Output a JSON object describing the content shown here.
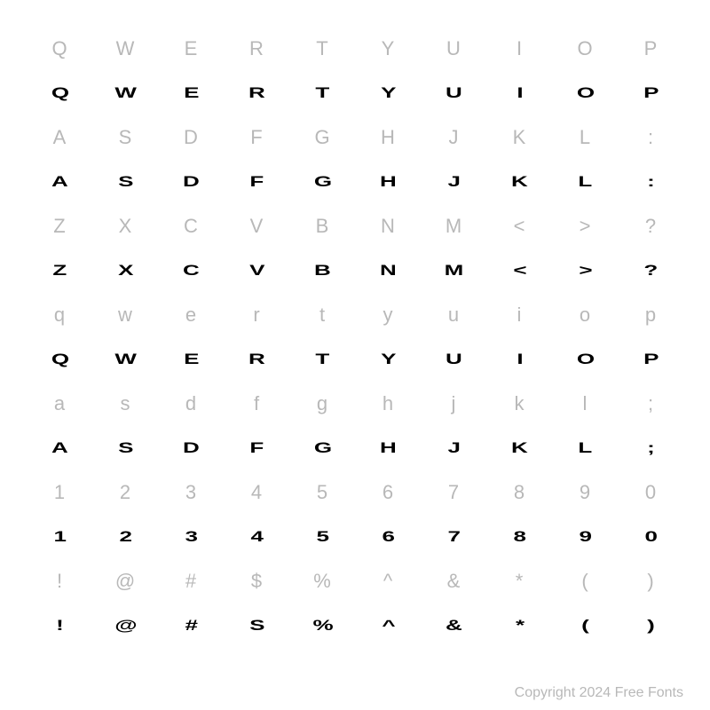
{
  "font_specimen": {
    "background_color": "#ffffff",
    "reference_color": "#b8b8b8",
    "glyph_color": "#000000",
    "reference_fontsize": 22,
    "glyph_fontsize": 20,
    "grid_columns": 10,
    "grid_rows": 12,
    "rows": [
      {
        "type": "ref",
        "cells": [
          "Q",
          "W",
          "E",
          "R",
          "T",
          "Y",
          "U",
          "I",
          "O",
          "P"
        ]
      },
      {
        "type": "glyph",
        "cells": [
          "Q",
          "W",
          "E",
          "R",
          "T",
          "Y",
          "U",
          "I",
          "O",
          "P"
        ]
      },
      {
        "type": "ref",
        "cells": [
          "A",
          "S",
          "D",
          "F",
          "G",
          "H",
          "J",
          "K",
          "L",
          ":"
        ]
      },
      {
        "type": "glyph",
        "cells": [
          "A",
          "S",
          "D",
          "F",
          "G",
          "H",
          "J",
          "K",
          "L",
          ":"
        ]
      },
      {
        "type": "ref",
        "cells": [
          "Z",
          "X",
          "C",
          "V",
          "B",
          "N",
          "M",
          "<",
          ">",
          "?"
        ]
      },
      {
        "type": "glyph",
        "cells": [
          "Z",
          "X",
          "C",
          "V",
          "B",
          "N",
          "M",
          "<",
          ">",
          "?"
        ]
      },
      {
        "type": "ref",
        "cells": [
          "q",
          "w",
          "e",
          "r",
          "t",
          "y",
          "u",
          "i",
          "o",
          "p"
        ]
      },
      {
        "type": "glyph",
        "cells": [
          "Q",
          "W",
          "E",
          "R",
          "T",
          "Y",
          "U",
          "I",
          "O",
          "P"
        ]
      },
      {
        "type": "ref",
        "cells": [
          "a",
          "s",
          "d",
          "f",
          "g",
          "h",
          "j",
          "k",
          "l",
          ";"
        ]
      },
      {
        "type": "glyph",
        "cells": [
          "A",
          "S",
          "D",
          "F",
          "G",
          "H",
          "J",
          "K",
          "L",
          ";"
        ]
      },
      {
        "type": "ref",
        "cells": [
          "1",
          "2",
          "3",
          "4",
          "5",
          "6",
          "7",
          "8",
          "9",
          "0"
        ]
      },
      {
        "type": "glyph",
        "cells": [
          "1",
          "2",
          "3",
          "4",
          "5",
          "6",
          "7",
          "8",
          "9",
          "0"
        ]
      },
      {
        "type": "ref",
        "cells": [
          "!",
          "@",
          "#",
          "$",
          "%",
          "^",
          "&",
          "*",
          "(",
          ")"
        ]
      },
      {
        "type": "glyph",
        "cells": [
          "!",
          "@",
          "#",
          "S",
          "%",
          "^",
          "&",
          "*",
          "(",
          ")"
        ]
      }
    ]
  },
  "copyright": "Copyright 2024 Free Fonts"
}
